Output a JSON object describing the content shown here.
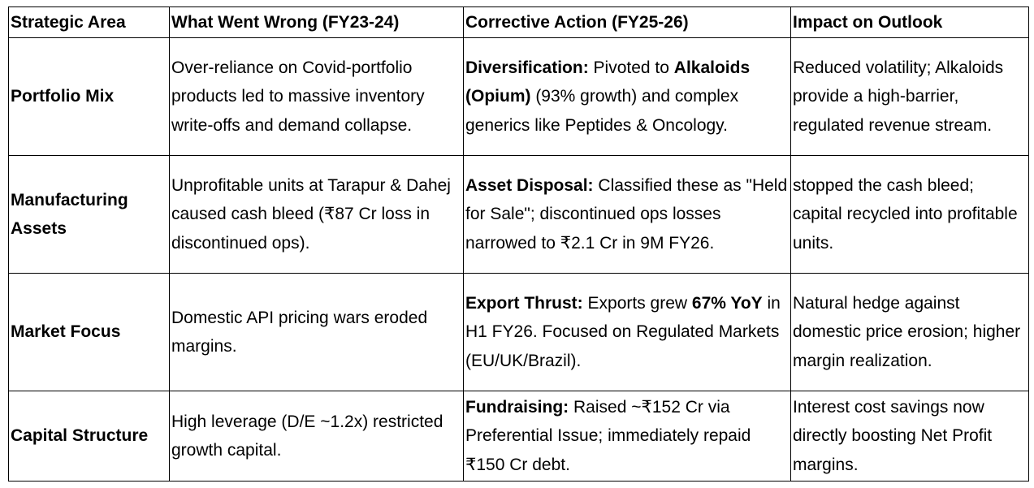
{
  "table": {
    "header": [
      "Strategic Area",
      "What Went Wrong (FY23-24)",
      "Corrective Action (FY25-26)",
      "Impact on Outlook"
    ],
    "rows": [
      [
        [
          {
            "text": "Portfolio Mix",
            "bold": true
          }
        ],
        [
          {
            "text": "Over-reliance on Covid-portfolio products led to massive inventory write-offs and demand collapse.",
            "bold": false
          }
        ],
        [
          {
            "text": "Diversification:",
            "bold": true
          },
          {
            "text": " Pivoted to ",
            "bold": false
          },
          {
            "text": "Alkaloids (Opium)",
            "bold": true
          },
          {
            "text": " (93% growth) and complex generics like Peptides & Oncology.",
            "bold": false
          }
        ],
        [
          {
            "text": "Reduced volatility; Alkaloids provide a high-barrier, regulated revenue stream.",
            "bold": false
          }
        ]
      ],
      [
        [
          {
            "text": "Manufacturing Assets",
            "bold": true
          }
        ],
        [
          {
            "text": "Unprofitable units at Tarapur & Dahej caused cash bleed (₹87 Cr loss in discontinued ops).",
            "bold": false
          }
        ],
        [
          {
            "text": "Asset Disposal:",
            "bold": true
          },
          {
            "text": " Classified these as \"Held for Sale\"; discontinued ops losses narrowed to ₹2.1 Cr in 9M FY26.",
            "bold": false
          }
        ],
        [
          {
            "text": "stopped the cash bleed; capital recycled into profitable units.",
            "bold": false
          }
        ]
      ],
      [
        [
          {
            "text": "Market Focus",
            "bold": true
          }
        ],
        [
          {
            "text": "Domestic API pricing wars eroded margins.",
            "bold": false
          }
        ],
        [
          {
            "text": "Export Thrust:",
            "bold": true
          },
          {
            "text": " Exports grew ",
            "bold": false
          },
          {
            "text": "67% YoY",
            "bold": true
          },
          {
            "text": " in H1 FY26. Focused on Regulated Markets (EU/UK/Brazil).",
            "bold": false
          }
        ],
        [
          {
            "text": "Natural hedge against domestic price erosion; higher margin realization.",
            "bold": false
          }
        ]
      ],
      [
        [
          {
            "text": "Capital Structure",
            "bold": true
          }
        ],
        [
          {
            "text": "High leverage (D/E ~1.2x) restricted growth capital.",
            "bold": false
          }
        ],
        [
          {
            "text": "Fundraising:",
            "bold": true
          },
          {
            "text": " Raised ~₹152 Cr via Preferential Issue; immediately repaid ₹150 Cr debt.",
            "bold": false
          }
        ],
        [
          {
            "text": "Interest cost savings now directly boosting Net Profit margins.",
            "bold": false
          }
        ]
      ]
    ]
  }
}
